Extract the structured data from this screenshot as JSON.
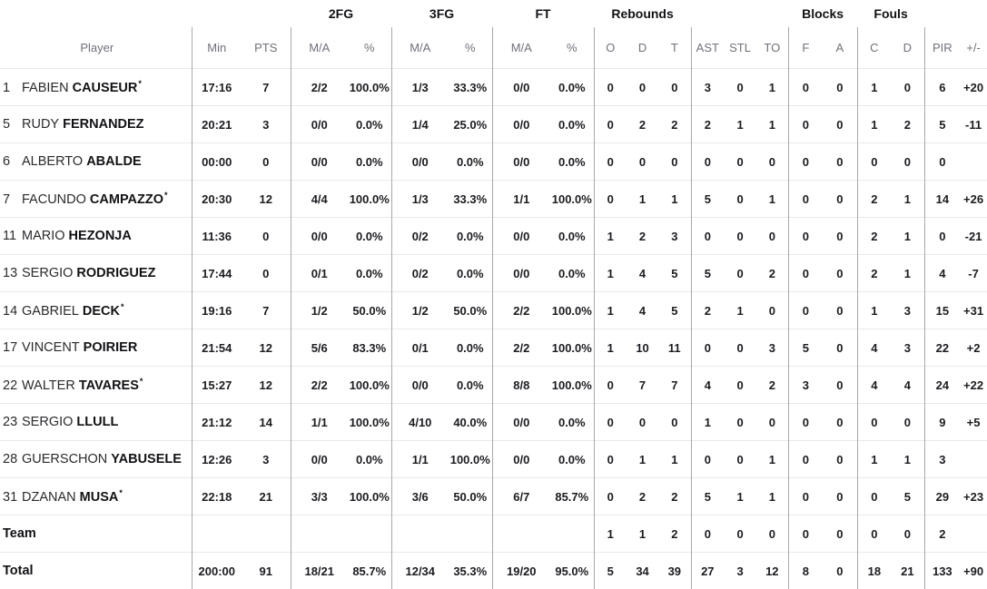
{
  "table": {
    "group_headers": {
      "fg2": "2FG",
      "fg3": "3FG",
      "ft": "FT",
      "rebounds": "Rebounds",
      "blocks": "Blocks",
      "fouls": "Fouls"
    },
    "column_headers": {
      "player": "Player",
      "min": "Min",
      "pts": "PTS",
      "ma": "M/A",
      "pct": "%",
      "reb_o": "O",
      "reb_d": "D",
      "reb_t": "T",
      "ast": "AST",
      "stl": "STL",
      "to": "TO",
      "blk_f": "F",
      "blk_a": "A",
      "foul_c": "C",
      "foul_d": "D",
      "pir": "PIR",
      "plus_minus": "+/-"
    },
    "rows": [
      {
        "num": "1",
        "first": "FABIEN",
        "last": "CAUSEUR",
        "starter": true,
        "min": "17:16",
        "pts": "7",
        "fg2": "2/2",
        "fg2p": "100.0%",
        "fg3": "1/3",
        "fg3p": "33.3%",
        "ft": "0/0",
        "ftp": "0.0%",
        "o": "0",
        "d": "0",
        "t": "0",
        "ast": "3",
        "stl": "0",
        "to": "1",
        "bf": "0",
        "ba": "0",
        "fc": "1",
        "fd": "0",
        "pir": "6",
        "pm": "+20"
      },
      {
        "num": "5",
        "first": "RUDY",
        "last": "FERNANDEZ",
        "starter": false,
        "min": "20:21",
        "pts": "3",
        "fg2": "0/0",
        "fg2p": "0.0%",
        "fg3": "1/4",
        "fg3p": "25.0%",
        "ft": "0/0",
        "ftp": "0.0%",
        "o": "0",
        "d": "2",
        "t": "2",
        "ast": "2",
        "stl": "1",
        "to": "1",
        "bf": "0",
        "ba": "0",
        "fc": "1",
        "fd": "2",
        "pir": "5",
        "pm": "-11"
      },
      {
        "num": "6",
        "first": "ALBERTO",
        "last": "ABALDE",
        "starter": false,
        "min": "00:00",
        "pts": "0",
        "fg2": "0/0",
        "fg2p": "0.0%",
        "fg3": "0/0",
        "fg3p": "0.0%",
        "ft": "0/0",
        "ftp": "0.0%",
        "o": "0",
        "d": "0",
        "t": "0",
        "ast": "0",
        "stl": "0",
        "to": "0",
        "bf": "0",
        "ba": "0",
        "fc": "0",
        "fd": "0",
        "pir": "0",
        "pm": ""
      },
      {
        "num": "7",
        "first": "FACUNDO",
        "last": "CAMPAZZO",
        "starter": true,
        "min": "20:30",
        "pts": "12",
        "fg2": "4/4",
        "fg2p": "100.0%",
        "fg3": "1/3",
        "fg3p": "33.3%",
        "ft": "1/1",
        "ftp": "100.0%",
        "o": "0",
        "d": "1",
        "t": "1",
        "ast": "5",
        "stl": "0",
        "to": "1",
        "bf": "0",
        "ba": "0",
        "fc": "2",
        "fd": "1",
        "pir": "14",
        "pm": "+26"
      },
      {
        "num": "11",
        "first": "MARIO",
        "last": "HEZONJA",
        "starter": false,
        "min": "11:36",
        "pts": "0",
        "fg2": "0/0",
        "fg2p": "0.0%",
        "fg3": "0/2",
        "fg3p": "0.0%",
        "ft": "0/0",
        "ftp": "0.0%",
        "o": "1",
        "d": "2",
        "t": "3",
        "ast": "0",
        "stl": "0",
        "to": "0",
        "bf": "0",
        "ba": "0",
        "fc": "2",
        "fd": "1",
        "pir": "0",
        "pm": "-21"
      },
      {
        "num": "13",
        "first": "SERGIO",
        "last": "RODRIGUEZ",
        "starter": false,
        "min": "17:44",
        "pts": "0",
        "fg2": "0/1",
        "fg2p": "0.0%",
        "fg3": "0/2",
        "fg3p": "0.0%",
        "ft": "0/0",
        "ftp": "0.0%",
        "o": "1",
        "d": "4",
        "t": "5",
        "ast": "5",
        "stl": "0",
        "to": "2",
        "bf": "0",
        "ba": "0",
        "fc": "2",
        "fd": "1",
        "pir": "4",
        "pm": "-7"
      },
      {
        "num": "14",
        "first": "GABRIEL",
        "last": "DECK",
        "starter": true,
        "min": "19:16",
        "pts": "7",
        "fg2": "1/2",
        "fg2p": "50.0%",
        "fg3": "1/2",
        "fg3p": "50.0%",
        "ft": "2/2",
        "ftp": "100.0%",
        "o": "1",
        "d": "4",
        "t": "5",
        "ast": "2",
        "stl": "1",
        "to": "0",
        "bf": "0",
        "ba": "0",
        "fc": "1",
        "fd": "3",
        "pir": "15",
        "pm": "+31"
      },
      {
        "num": "17",
        "first": "VINCENT",
        "last": "POIRIER",
        "starter": false,
        "min": "21:54",
        "pts": "12",
        "fg2": "5/6",
        "fg2p": "83.3%",
        "fg3": "0/1",
        "fg3p": "0.0%",
        "ft": "2/2",
        "ftp": "100.0%",
        "o": "1",
        "d": "10",
        "t": "11",
        "ast": "0",
        "stl": "0",
        "to": "3",
        "bf": "5",
        "ba": "0",
        "fc": "4",
        "fd": "3",
        "pir": "22",
        "pm": "+2"
      },
      {
        "num": "22",
        "first": "WALTER",
        "last": "TAVARES",
        "starter": true,
        "min": "15:27",
        "pts": "12",
        "fg2": "2/2",
        "fg2p": "100.0%",
        "fg3": "0/0",
        "fg3p": "0.0%",
        "ft": "8/8",
        "ftp": "100.0%",
        "o": "0",
        "d": "7",
        "t": "7",
        "ast": "4",
        "stl": "0",
        "to": "2",
        "bf": "3",
        "ba": "0",
        "fc": "4",
        "fd": "4",
        "pir": "24",
        "pm": "+22"
      },
      {
        "num": "23",
        "first": "SERGIO",
        "last": "LLULL",
        "starter": false,
        "min": "21:12",
        "pts": "14",
        "fg2": "1/1",
        "fg2p": "100.0%",
        "fg3": "4/10",
        "fg3p": "40.0%",
        "ft": "0/0",
        "ftp": "0.0%",
        "o": "0",
        "d": "0",
        "t": "0",
        "ast": "1",
        "stl": "0",
        "to": "0",
        "bf": "0",
        "ba": "0",
        "fc": "0",
        "fd": "0",
        "pir": "9",
        "pm": "+5"
      },
      {
        "num": "28",
        "first": "GUERSCHON",
        "last": "YABUSELE",
        "starter": false,
        "min": "12:26",
        "pts": "3",
        "fg2": "0/0",
        "fg2p": "0.0%",
        "fg3": "1/1",
        "fg3p": "100.0%",
        "ft": "0/0",
        "ftp": "0.0%",
        "o": "0",
        "d": "1",
        "t": "1",
        "ast": "0",
        "stl": "0",
        "to": "1",
        "bf": "0",
        "ba": "0",
        "fc": "1",
        "fd": "1",
        "pir": "3",
        "pm": ""
      },
      {
        "num": "31",
        "first": "DZANAN",
        "last": "MUSA",
        "starter": true,
        "min": "22:18",
        "pts": "21",
        "fg2": "3/3",
        "fg2p": "100.0%",
        "fg3": "3/6",
        "fg3p": "50.0%",
        "ft": "6/7",
        "ftp": "85.7%",
        "o": "0",
        "d": "2",
        "t": "2",
        "ast": "5",
        "stl": "1",
        "to": "1",
        "bf": "0",
        "ba": "0",
        "fc": "0",
        "fd": "5",
        "pir": "29",
        "pm": "+23"
      },
      {
        "label": "Team",
        "min": "",
        "pts": "",
        "fg2": "",
        "fg2p": "",
        "fg3": "",
        "fg3p": "",
        "ft": "",
        "ftp": "",
        "o": "1",
        "d": "1",
        "t": "2",
        "ast": "0",
        "stl": "0",
        "to": "0",
        "bf": "0",
        "ba": "0",
        "fc": "0",
        "fd": "0",
        "pir": "2",
        "pm": ""
      },
      {
        "label": "Total",
        "min": "200:00",
        "pts": "91",
        "fg2": "18/21",
        "fg2p": "85.7%",
        "fg3": "12/34",
        "fg3p": "35.3%",
        "ft": "19/20",
        "ftp": "95.0%",
        "o": "5",
        "d": "34",
        "t": "39",
        "ast": "27",
        "stl": "3",
        "to": "12",
        "bf": "8",
        "ba": "0",
        "fc": "18",
        "fd": "21",
        "pir": "133",
        "pm": "+90"
      }
    ],
    "starter_mark": "*"
  },
  "colors": {
    "header_text": "#70707a",
    "group_header_text": "#121216",
    "stat_text": "#1c1c21",
    "vertical_divider": "#a9a9a9",
    "horizontal_divider": "#e9e9e9",
    "background": "#ffffff"
  }
}
